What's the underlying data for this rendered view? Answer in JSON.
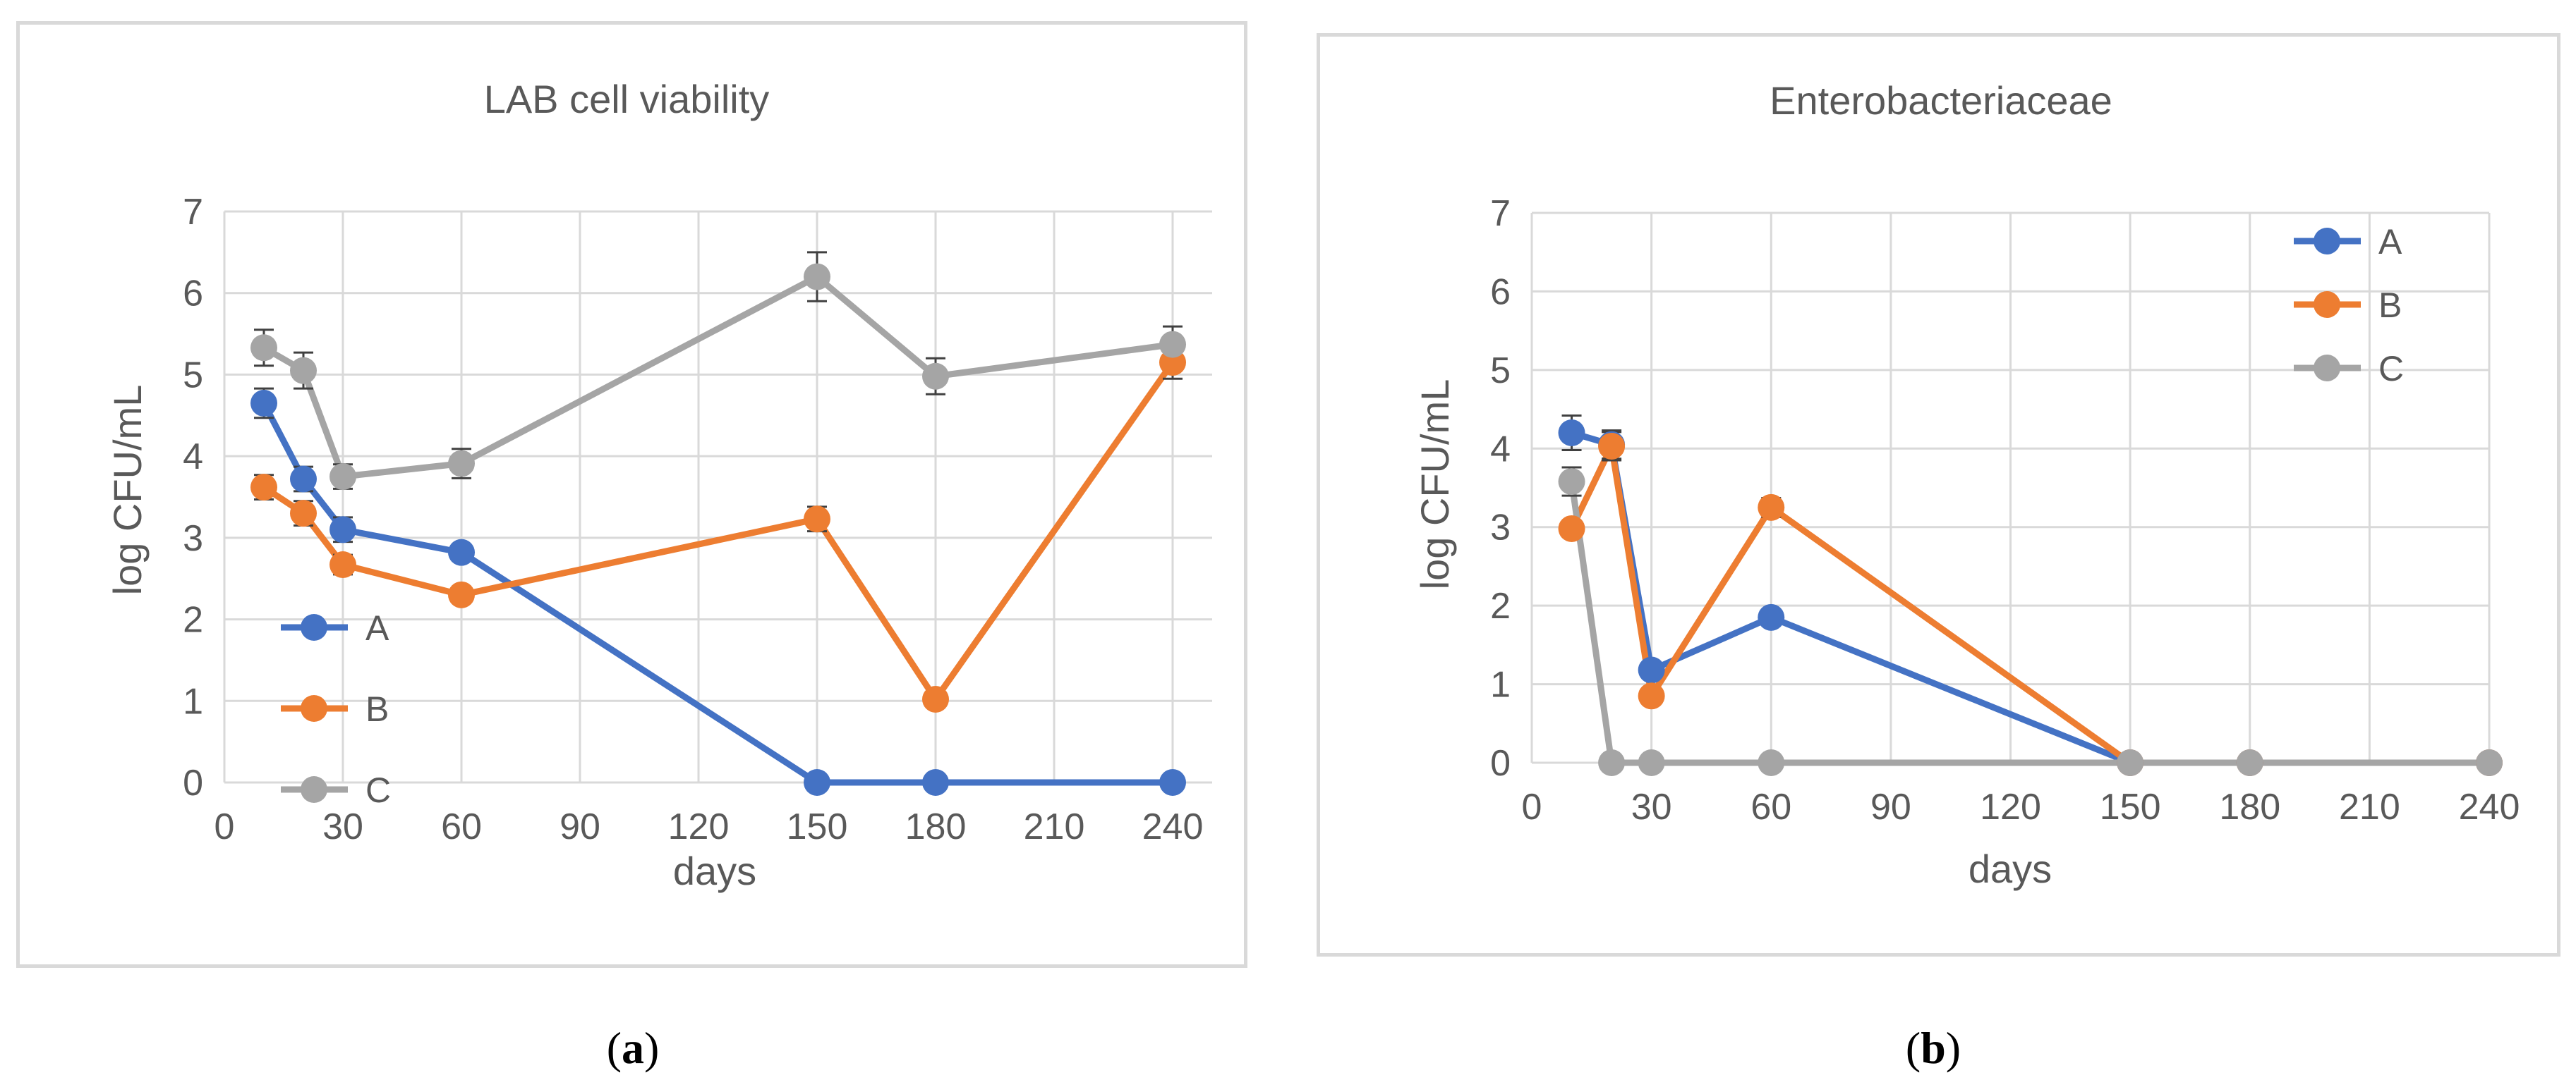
{
  "colors": {
    "A": "#4472c4",
    "B": "#ed7d31",
    "C": "#a5a5a5",
    "grid": "#d9d9d9",
    "text": "#595959"
  },
  "chart_data": [
    {
      "id": "a",
      "type": "line",
      "title": "LAB cell viability",
      "xlabel": "days",
      "ylabel": "log CFU/mL",
      "xlim": [
        0,
        250
      ],
      "ylim": [
        0,
        7
      ],
      "xticks": [
        0,
        30,
        60,
        90,
        120,
        150,
        180,
        210,
        240
      ],
      "yticks": [
        0,
        1,
        2,
        3,
        4,
        5,
        6,
        7
      ],
      "grid": true,
      "legend_position": "bottom-left",
      "series": [
        {
          "name": "A",
          "color": "#4472c4",
          "x": [
            10,
            20,
            30,
            60,
            150,
            180,
            240
          ],
          "y": [
            4.65,
            3.72,
            3.1,
            2.82,
            0,
            0,
            0
          ],
          "err": [
            0.18,
            0.15,
            0.15,
            0.1,
            0,
            0,
            0
          ]
        },
        {
          "name": "B",
          "color": "#ed7d31",
          "x": [
            10,
            20,
            30,
            60,
            150,
            180,
            240
          ],
          "y": [
            3.62,
            3.3,
            2.67,
            2.3,
            3.23,
            1.02,
            5.15
          ],
          "err": [
            0.15,
            0.15,
            0.12,
            0.1,
            0.15,
            0.05,
            0.2
          ]
        },
        {
          "name": "C",
          "color": "#a5a5a5",
          "x": [
            10,
            20,
            30,
            60,
            150,
            180,
            240
          ],
          "y": [
            5.33,
            5.05,
            3.75,
            3.91,
            6.2,
            4.98,
            5.37
          ],
          "err": [
            0.22,
            0.22,
            0.15,
            0.18,
            0.3,
            0.22,
            0.22
          ]
        }
      ]
    },
    {
      "id": "b",
      "type": "line",
      "title": "Enterobacteriaceae",
      "xlabel": "days",
      "ylabel": "log CFU/mL",
      "xlim": [
        0,
        240
      ],
      "ylim": [
        0,
        7
      ],
      "xticks": [
        0,
        30,
        60,
        90,
        120,
        150,
        180,
        210,
        240
      ],
      "yticks": [
        0,
        1,
        2,
        3,
        4,
        5,
        6,
        7
      ],
      "grid": true,
      "legend_position": "top-right",
      "series": [
        {
          "name": "A",
          "color": "#4472c4",
          "x": [
            10,
            20,
            30,
            60,
            150,
            180,
            240
          ],
          "y": [
            4.2,
            4.05,
            1.18,
            1.85,
            0,
            0,
            0
          ],
          "err": [
            0.22,
            0.18,
            0.1,
            0.1,
            0,
            0,
            0
          ]
        },
        {
          "name": "B",
          "color": "#ed7d31",
          "x": [
            10,
            20,
            30,
            60,
            150,
            180,
            240
          ],
          "y": [
            2.98,
            4.03,
            0.85,
            3.25,
            0,
            0,
            0
          ],
          "err": [
            0.1,
            0.18,
            0.08,
            0.12,
            0,
            0,
            0
          ]
        },
        {
          "name": "C",
          "color": "#a5a5a5",
          "x": [
            10,
            20,
            30,
            60,
            150,
            180,
            240
          ],
          "y": [
            3.58,
            0,
            0,
            0,
            0,
            0,
            0
          ],
          "err": [
            0.18,
            0,
            0,
            0,
            0,
            0,
            0
          ]
        }
      ]
    }
  ],
  "captions": {
    "a": "a",
    "b": "b"
  }
}
